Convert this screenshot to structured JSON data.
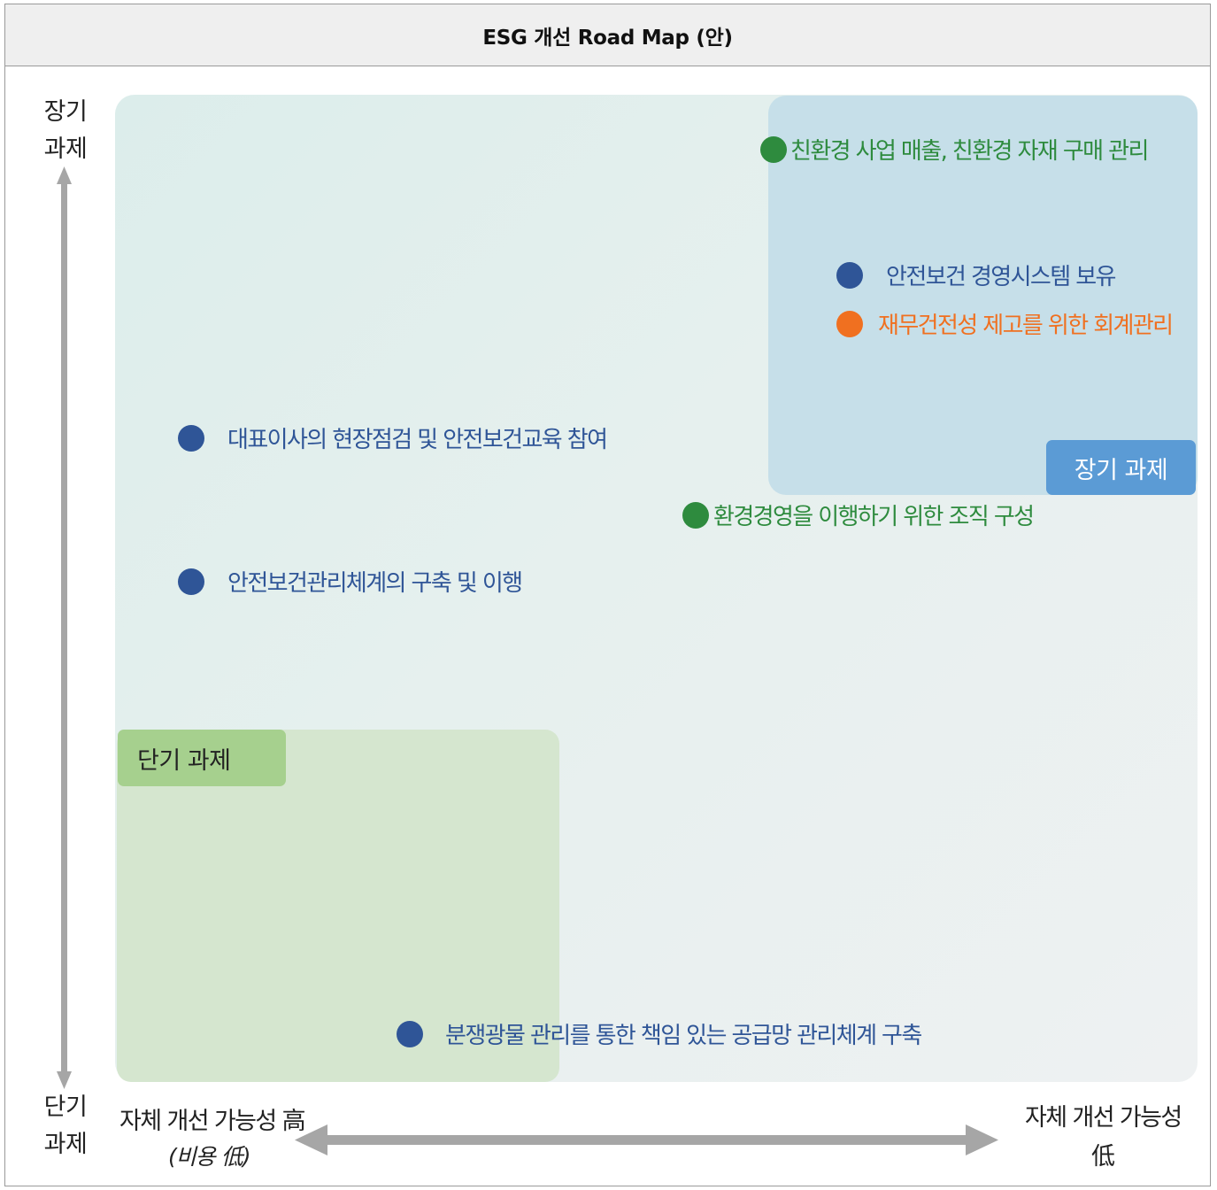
{
  "title": "ESG 개선 Road Map (안)",
  "y_axis": {
    "top": [
      "장기",
      "과제"
    ],
    "bottom": [
      "단기",
      "과제"
    ]
  },
  "x_axis": {
    "left": "자체 개선 가능성 高",
    "left_sub": "(비용 低)",
    "right": "자체 개선 가능성",
    "right_sub": "低"
  },
  "zones": {
    "long_term": "장기 과제",
    "short_term": "단기 과제"
  },
  "colors": {
    "environment": "#2e8b3e",
    "social": "#2f5597",
    "governance": "#f07020",
    "long_badge": "#5b9bd5",
    "short_badge": "#a6d08e"
  },
  "items": [
    {
      "label": "친환경 사업 매출, 친환경 자재 구매 관리",
      "category": "environment"
    },
    {
      "label": "안전보건 경영시스템 보유",
      "category": "social"
    },
    {
      "label": "재무건전성 제고를 위한 회계관리",
      "category": "governance"
    },
    {
      "label": "대표이사의 현장점검 및 안전보건교육 참여",
      "category": "social"
    },
    {
      "label": "환경경영을 이행하기 위한 조직 구성",
      "category": "environment"
    },
    {
      "label": "안전보건관리체계의 구축 및 이행",
      "category": "social"
    },
    {
      "label": "분쟁광물 관리를 통한 책임 있는 공급망 관리체계 구축",
      "category": "social"
    }
  ]
}
